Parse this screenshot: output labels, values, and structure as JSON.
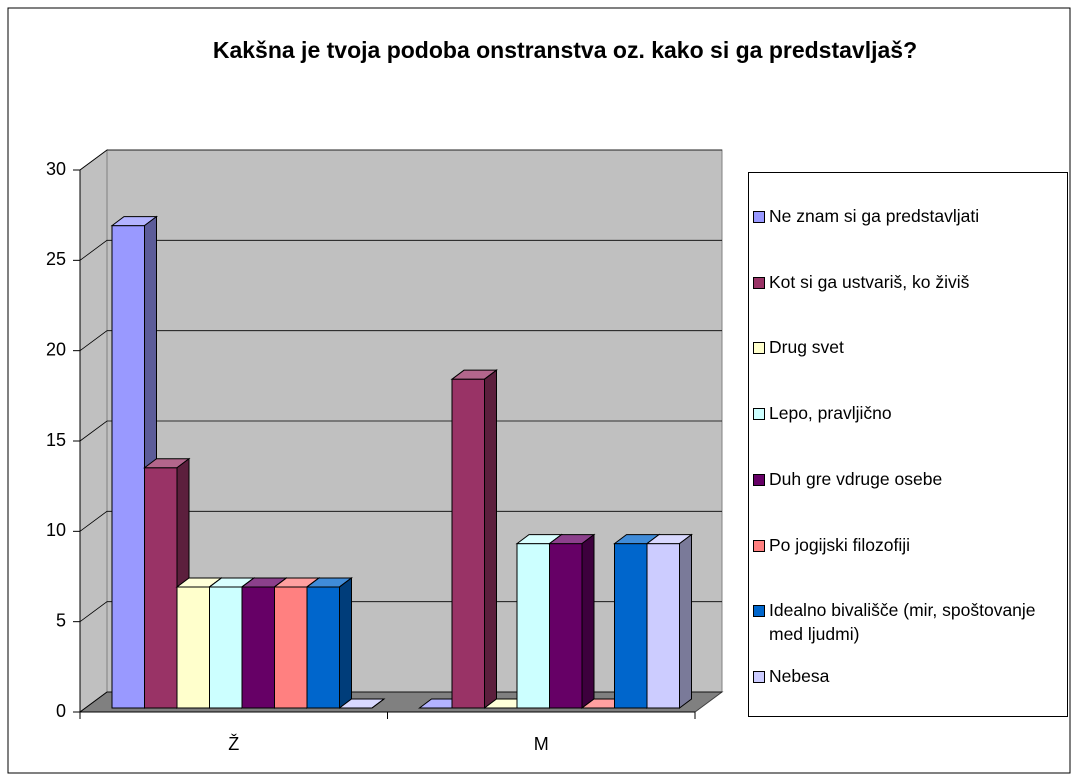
{
  "chart_data": {
    "type": "bar3d",
    "title": "Kakšna je tvoja podoba onstranstva oz. kako si ga predstavljaš?",
    "categories": [
      "Ž",
      "M"
    ],
    "series": [
      {
        "name": "Ne znam si ga predstavljati",
        "color": "#9999ff",
        "values": [
          26.7,
          0
        ]
      },
      {
        "name": "Kot si ga ustvariš, ko živiš",
        "color": "#993366",
        "values": [
          13.3,
          18.2
        ]
      },
      {
        "name": "Drug svet",
        "color": "#ffffcc",
        "values": [
          6.7,
          0
        ]
      },
      {
        "name": "Lepo, pravljično",
        "color": "#ccffff",
        "values": [
          6.7,
          9.1
        ]
      },
      {
        "name": "Duh gre vdruge osebe",
        "color": "#660066",
        "values": [
          6.7,
          9.1
        ]
      },
      {
        "name": "Po jogijski filozofiji",
        "color": "#ff8080",
        "values": [
          6.7,
          0
        ]
      },
      {
        "name": "Idealno bivališče (mir, spoštovanje med ljudmi)",
        "color": "#0066cc",
        "values": [
          6.7,
          9.1
        ]
      },
      {
        "name": "Nebesa",
        "color": "#ccccff",
        "values": [
          0,
          9.1
        ]
      }
    ],
    "ylim": [
      0,
      30
    ],
    "yticks": [
      0,
      5,
      10,
      15,
      20,
      25,
      30
    ],
    "grid": true,
    "legend": "right"
  }
}
